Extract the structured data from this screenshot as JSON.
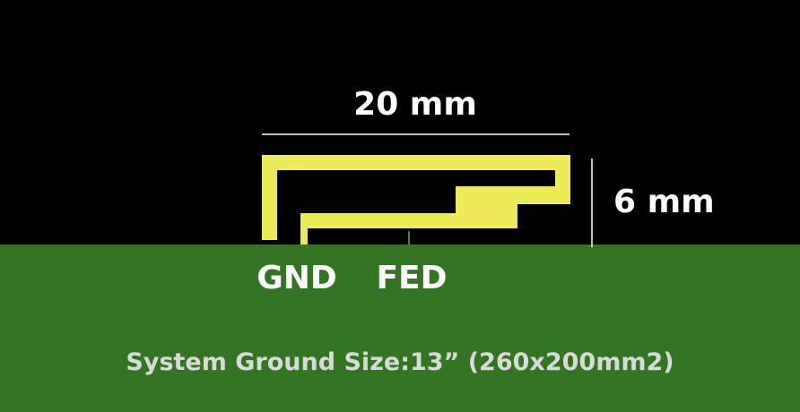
{
  "diagram": {
    "width_label": "20 mm",
    "height_label": "6 mm",
    "gnd_label": "GND",
    "feed_label": "FED",
    "caption": "System Ground Size:13” (260x200mm2)"
  },
  "colors": {
    "background": "#000000",
    "ground_plane": "#347524",
    "antenna_trace": "#ecea56",
    "dimension_line": "#ffffff",
    "label_text": "#ffffff",
    "caption_text": "#d9d9d9"
  }
}
